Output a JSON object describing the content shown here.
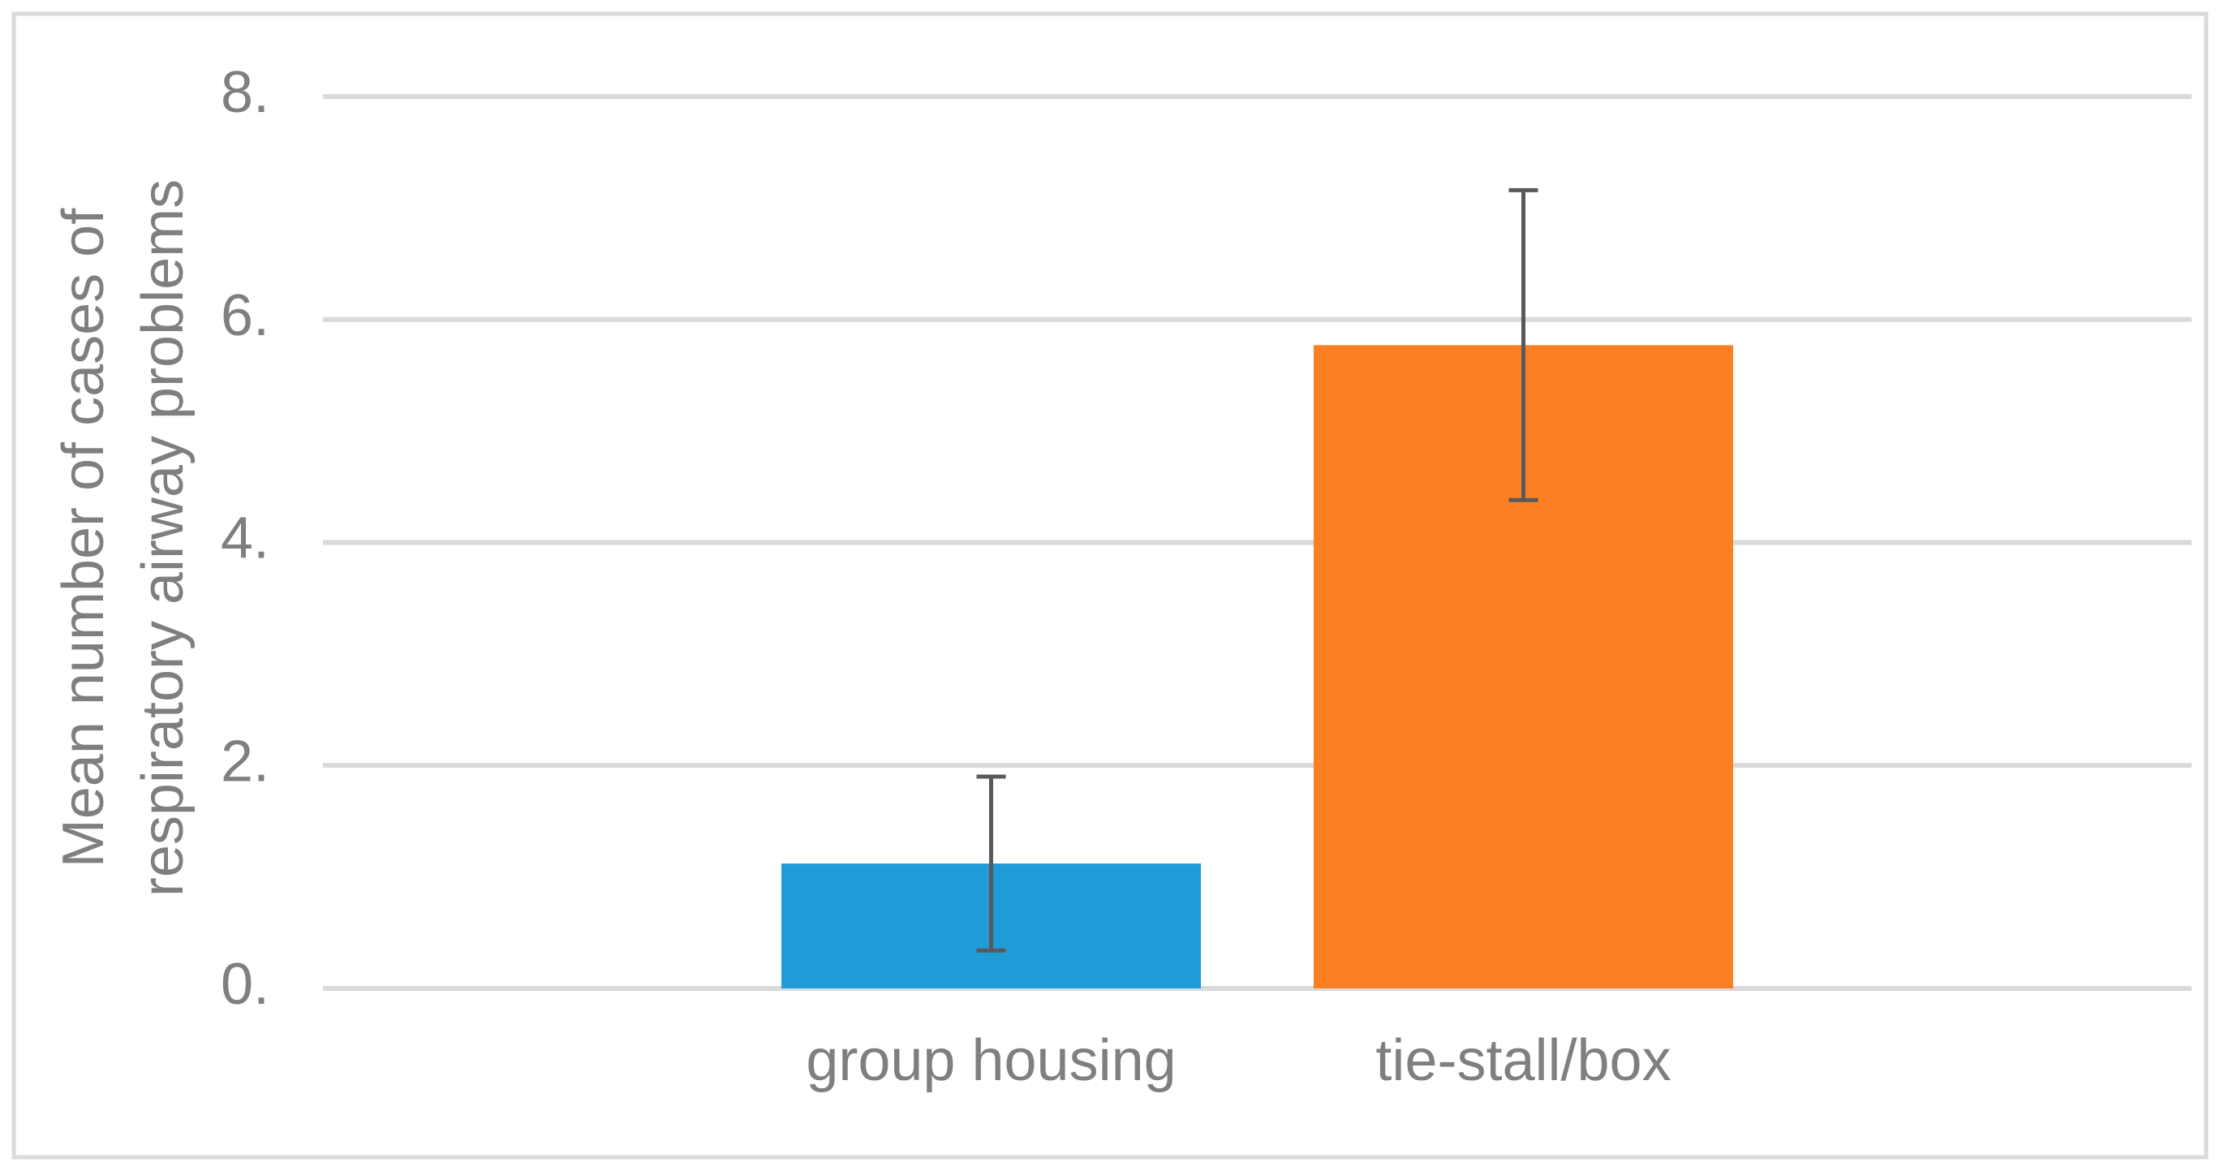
{
  "chart_data": {
    "type": "bar",
    "ylabel": [
      "Mean number of cases of",
      "respiratory airway problems"
    ],
    "categories": [
      "group housing",
      "tie-stall/box"
    ],
    "values": [
      1.12,
      5.77
    ],
    "errors": [
      0.78,
      1.39
    ],
    "colors": [
      "#1f9bd7",
      "#fd7f23"
    ],
    "ylim": [
      0,
      8
    ],
    "yticks": [
      {
        "value": 0,
        "label": "0."
      },
      {
        "value": 2,
        "label": "2."
      },
      {
        "value": 4,
        "label": "4."
      },
      {
        "value": 6,
        "label": "6."
      },
      {
        "value": 8,
        "label": "8."
      }
    ],
    "grid": true
  }
}
